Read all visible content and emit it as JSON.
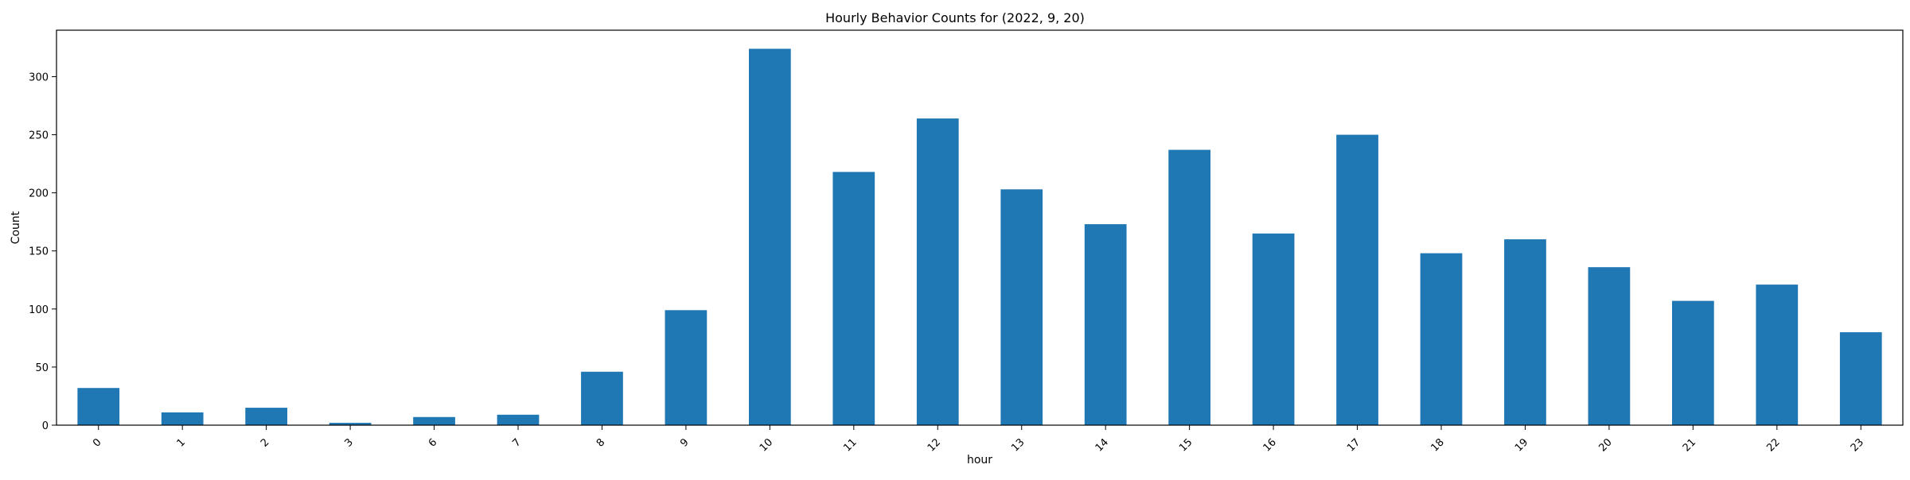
{
  "chart_data": {
    "type": "bar",
    "title": "Hourly Behavior Counts for (2022, 9, 20)",
    "xlabel": "hour",
    "ylabel": "Count",
    "categories": [
      "0",
      "1",
      "2",
      "3",
      "6",
      "7",
      "8",
      "9",
      "10",
      "11",
      "12",
      "13",
      "14",
      "15",
      "16",
      "17",
      "18",
      "19",
      "20",
      "21",
      "22",
      "23"
    ],
    "values": [
      32,
      11,
      15,
      2,
      7,
      9,
      46,
      99,
      324,
      218,
      264,
      203,
      173,
      237,
      165,
      250,
      148,
      160,
      136,
      107,
      121,
      80
    ],
    "ylim": [
      0,
      340
    ],
    "yticks": [
      0,
      50,
      100,
      150,
      200,
      250,
      300
    ],
    "bar_color": "#1f77b4",
    "grid": false,
    "legend": "none",
    "xtick_rotation_deg": 45
  }
}
